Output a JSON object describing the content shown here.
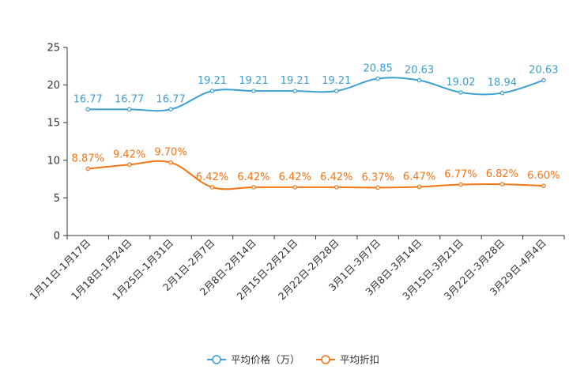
{
  "chart_data": {
    "type": "line",
    "title": "",
    "xlabel": "",
    "ylabel": "",
    "ylim": [
      0,
      25
    ],
    "yticks": [
      0,
      5,
      10,
      15,
      20,
      25
    ],
    "categories": [
      "1月11日-1月17日",
      "1月18日-1月24日",
      "1月25日-1月31日",
      "2月1日-2月7日",
      "2月8日-2月14日",
      "2月15日-2月21日",
      "2月22日-2月28日",
      "3月1日-3月7日",
      "3月8日-3月14日",
      "3月15日-3月21日",
      "3月22日-3月28日",
      "3月29日-4月4日"
    ],
    "series": [
      {
        "name": "平均价格（万）",
        "color": "#3c9fcf",
        "values": [
          16.77,
          16.77,
          16.77,
          19.21,
          19.21,
          19.21,
          19.21,
          20.85,
          20.63,
          19.02,
          18.94,
          20.63
        ],
        "labels": [
          "16.77",
          "16.77",
          "16.77",
          "19.21",
          "19.21",
          "19.21",
          "19.21",
          "20.85",
          "20.63",
          "19.02",
          "18.94",
          "20.63"
        ]
      },
      {
        "name": "平均折扣",
        "color": "#f57414",
        "values": [
          8.87,
          9.42,
          9.7,
          6.42,
          6.42,
          6.42,
          6.42,
          6.37,
          6.47,
          6.77,
          6.82,
          6.6
        ],
        "labels": [
          "8.87%",
          "9.42%",
          "9.70%",
          "6.42%",
          "6.42%",
          "6.42%",
          "6.42%",
          "6.37%",
          "6.47%",
          "6.77%",
          "6.82%",
          "6.60%"
        ]
      }
    ],
    "grid": false,
    "legend_position": "bottom-center"
  }
}
